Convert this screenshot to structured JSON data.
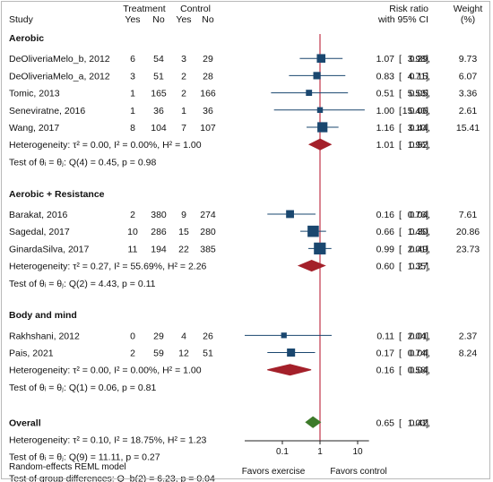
{
  "headers": {
    "study": "Study",
    "treatment": "Treatment",
    "control": "Control",
    "yes": "Yes",
    "no": "No",
    "effect_line1": "Risk ratio",
    "effect_line2": "with 95% CI",
    "weight_line1": "Weight",
    "weight_line2": "(%)"
  },
  "colors": {
    "marker": "#1a476f",
    "ci_line": "#1a476f",
    "subgroup_diamond": "#a4202a",
    "overall_diamond": "#3d7a2a",
    "reference_line": "#c0354a",
    "axis": "#222222"
  },
  "chart_data": {
    "type": "forest",
    "scale": "log",
    "xlim": [
      0.01,
      20
    ],
    "xticks": [
      "0.1",
      "1",
      "10"
    ],
    "x_tick_values": [
      0.1,
      1,
      10
    ],
    "reference_value": 1,
    "favors_left": "Favors exercise",
    "favors_right": "Favors control",
    "model_note": "Random-effects REML model",
    "groups": [
      {
        "name": "Aerobic",
        "studies": [
          {
            "study": "DeOliveriaMelo_b, 2012",
            "t_yes": "6",
            "t_no": "54",
            "c_yes": "3",
            "c_no": "29",
            "rr": 1.07,
            "lo": 0.29,
            "hi": 3.98,
            "rr_text": "1.07",
            "lo_text": "0.29,",
            "hi_text": "3.98]",
            "weight": "9.73",
            "w": 9.73
          },
          {
            "study": "DeOliveriaMelo_a, 2012",
            "t_yes": "3",
            "t_no": "51",
            "c_yes": "2",
            "c_no": "28",
            "rr": 0.83,
            "lo": 0.15,
            "hi": 4.71,
            "rr_text": "0.83",
            "lo_text": "0.15,",
            "hi_text": "4.71]",
            "weight": "6.07",
            "w": 6.07
          },
          {
            "study": "Tomic, 2013",
            "t_yes": "1",
            "t_no": "165",
            "c_yes": "2",
            "c_no": "166",
            "rr": 0.51,
            "lo": 0.05,
            "hi": 5.53,
            "rr_text": "0.51",
            "lo_text": "0.05,",
            "hi_text": "5.53]",
            "weight": "3.36",
            "w": 3.36
          },
          {
            "study": "Seneviratne, 2016",
            "t_yes": "1",
            "t_no": "36",
            "c_yes": "1",
            "c_no": "36",
            "rr": 1.0,
            "lo": 0.06,
            "hi": 15.4,
            "rr_text": "1.00",
            "lo_text": "0.06,",
            "hi_text": "15.40]",
            "weight": "2.61",
            "w": 2.61
          },
          {
            "study": "Wang, 2017",
            "t_yes": "8",
            "t_no": "104",
            "c_yes": "7",
            "c_no": "107",
            "rr": 1.16,
            "lo": 0.44,
            "hi": 3.1,
            "rr_text": "1.16",
            "lo_text": "0.44,",
            "hi_text": "3.10]",
            "weight": "15.41",
            "w": 15.41
          }
        ],
        "heterogeneity": "Heterogeneity: τ² = 0.00, I² = 0.00%, H² = 1.00",
        "pooled": {
          "rr": 1.01,
          "lo": 0.52,
          "hi": 1.96,
          "rr_text": "1.01",
          "lo_text": "0.52,",
          "hi_text": "1.96]"
        },
        "test": "Test of θᵢ = θⱼ: Q(4) = 0.45, p = 0.98"
      },
      {
        "name": "Aerobic + Resistance",
        "studies": [
          {
            "study": "Barakat, 2016",
            "t_yes": "2",
            "t_no": "380",
            "c_yes": "9",
            "c_no": "274",
            "rr": 0.16,
            "lo": 0.04,
            "hi": 0.76,
            "rr_text": "0.16",
            "lo_text": "0.04,",
            "hi_text": "0.76]",
            "weight": "7.61",
            "w": 7.61
          },
          {
            "study": "Sagedal, 2017",
            "t_yes": "10",
            "t_no": "286",
            "c_yes": "15",
            "c_no": "280",
            "rr": 0.66,
            "lo": 0.3,
            "hi": 1.45,
            "rr_text": "0.66",
            "lo_text": "0.30,",
            "hi_text": "1.45]",
            "weight": "20.86",
            "w": 20.86
          },
          {
            "study": "GinardaSilva, 2017",
            "t_yes": "11",
            "t_no": "194",
            "c_yes": "22",
            "c_no": "385",
            "rr": 0.99,
            "lo": 0.49,
            "hi": 2.01,
            "rr_text": "0.99",
            "lo_text": "0.49,",
            "hi_text": "2.01]",
            "weight": "23.73",
            "w": 23.73
          }
        ],
        "heterogeneity": "Heterogeneity: τ² = 0.27, I² = 55.69%, H² = 2.26",
        "pooled": {
          "rr": 0.6,
          "lo": 0.27,
          "hi": 1.35,
          "rr_text": "0.60",
          "lo_text": "0.27,",
          "hi_text": "1.35]"
        },
        "test": "Test of θᵢ = θⱼ: Q(2) = 4.43, p = 0.11"
      },
      {
        "name": "Body and mind",
        "studies": [
          {
            "study": "Rakhshani, 2012",
            "t_yes": "0",
            "t_no": "29",
            "c_yes": "4",
            "c_no": "26",
            "rr": 0.11,
            "lo": 0.01,
            "hi": 2.04,
            "rr_text": "0.11",
            "lo_text": "0.01,",
            "hi_text": "2.04]",
            "weight": "2.37",
            "w": 2.37
          },
          {
            "study": "Pais, 2021",
            "t_yes": "2",
            "t_no": "59",
            "c_yes": "12",
            "c_no": "51",
            "rr": 0.17,
            "lo": 0.04,
            "hi": 0.74,
            "rr_text": "0.17",
            "lo_text": "0.04,",
            "hi_text": "0.74]",
            "weight": "8.24",
            "w": 8.24
          }
        ],
        "heterogeneity": "Heterogeneity: τ² = 0.00, I² = 0.00%, H² = 1.00",
        "pooled": {
          "rr": 0.16,
          "lo": 0.04,
          "hi": 0.58,
          "rr_text": "0.16",
          "lo_text": "0.04,",
          "hi_text": "0.58]"
        },
        "test": "Test of θᵢ = θⱼ: Q(1) = 0.06, p = 0.81"
      }
    ],
    "overall": {
      "name": "Overall",
      "rr": 0.65,
      "lo": 0.42,
      "hi": 1.03,
      "rr_text": "0.65",
      "lo_text": "0.42,",
      "hi_text": "1.03]",
      "heterogeneity": "Heterogeneity: τ² = 0.10, I² = 18.75%, H² = 1.23",
      "test": "Test of θᵢ = θⱼ: Q(9) = 11.11, p = 0.27",
      "group_test": "Test of group differences: Q_b(2) = 6.23, p = 0.04"
    }
  }
}
